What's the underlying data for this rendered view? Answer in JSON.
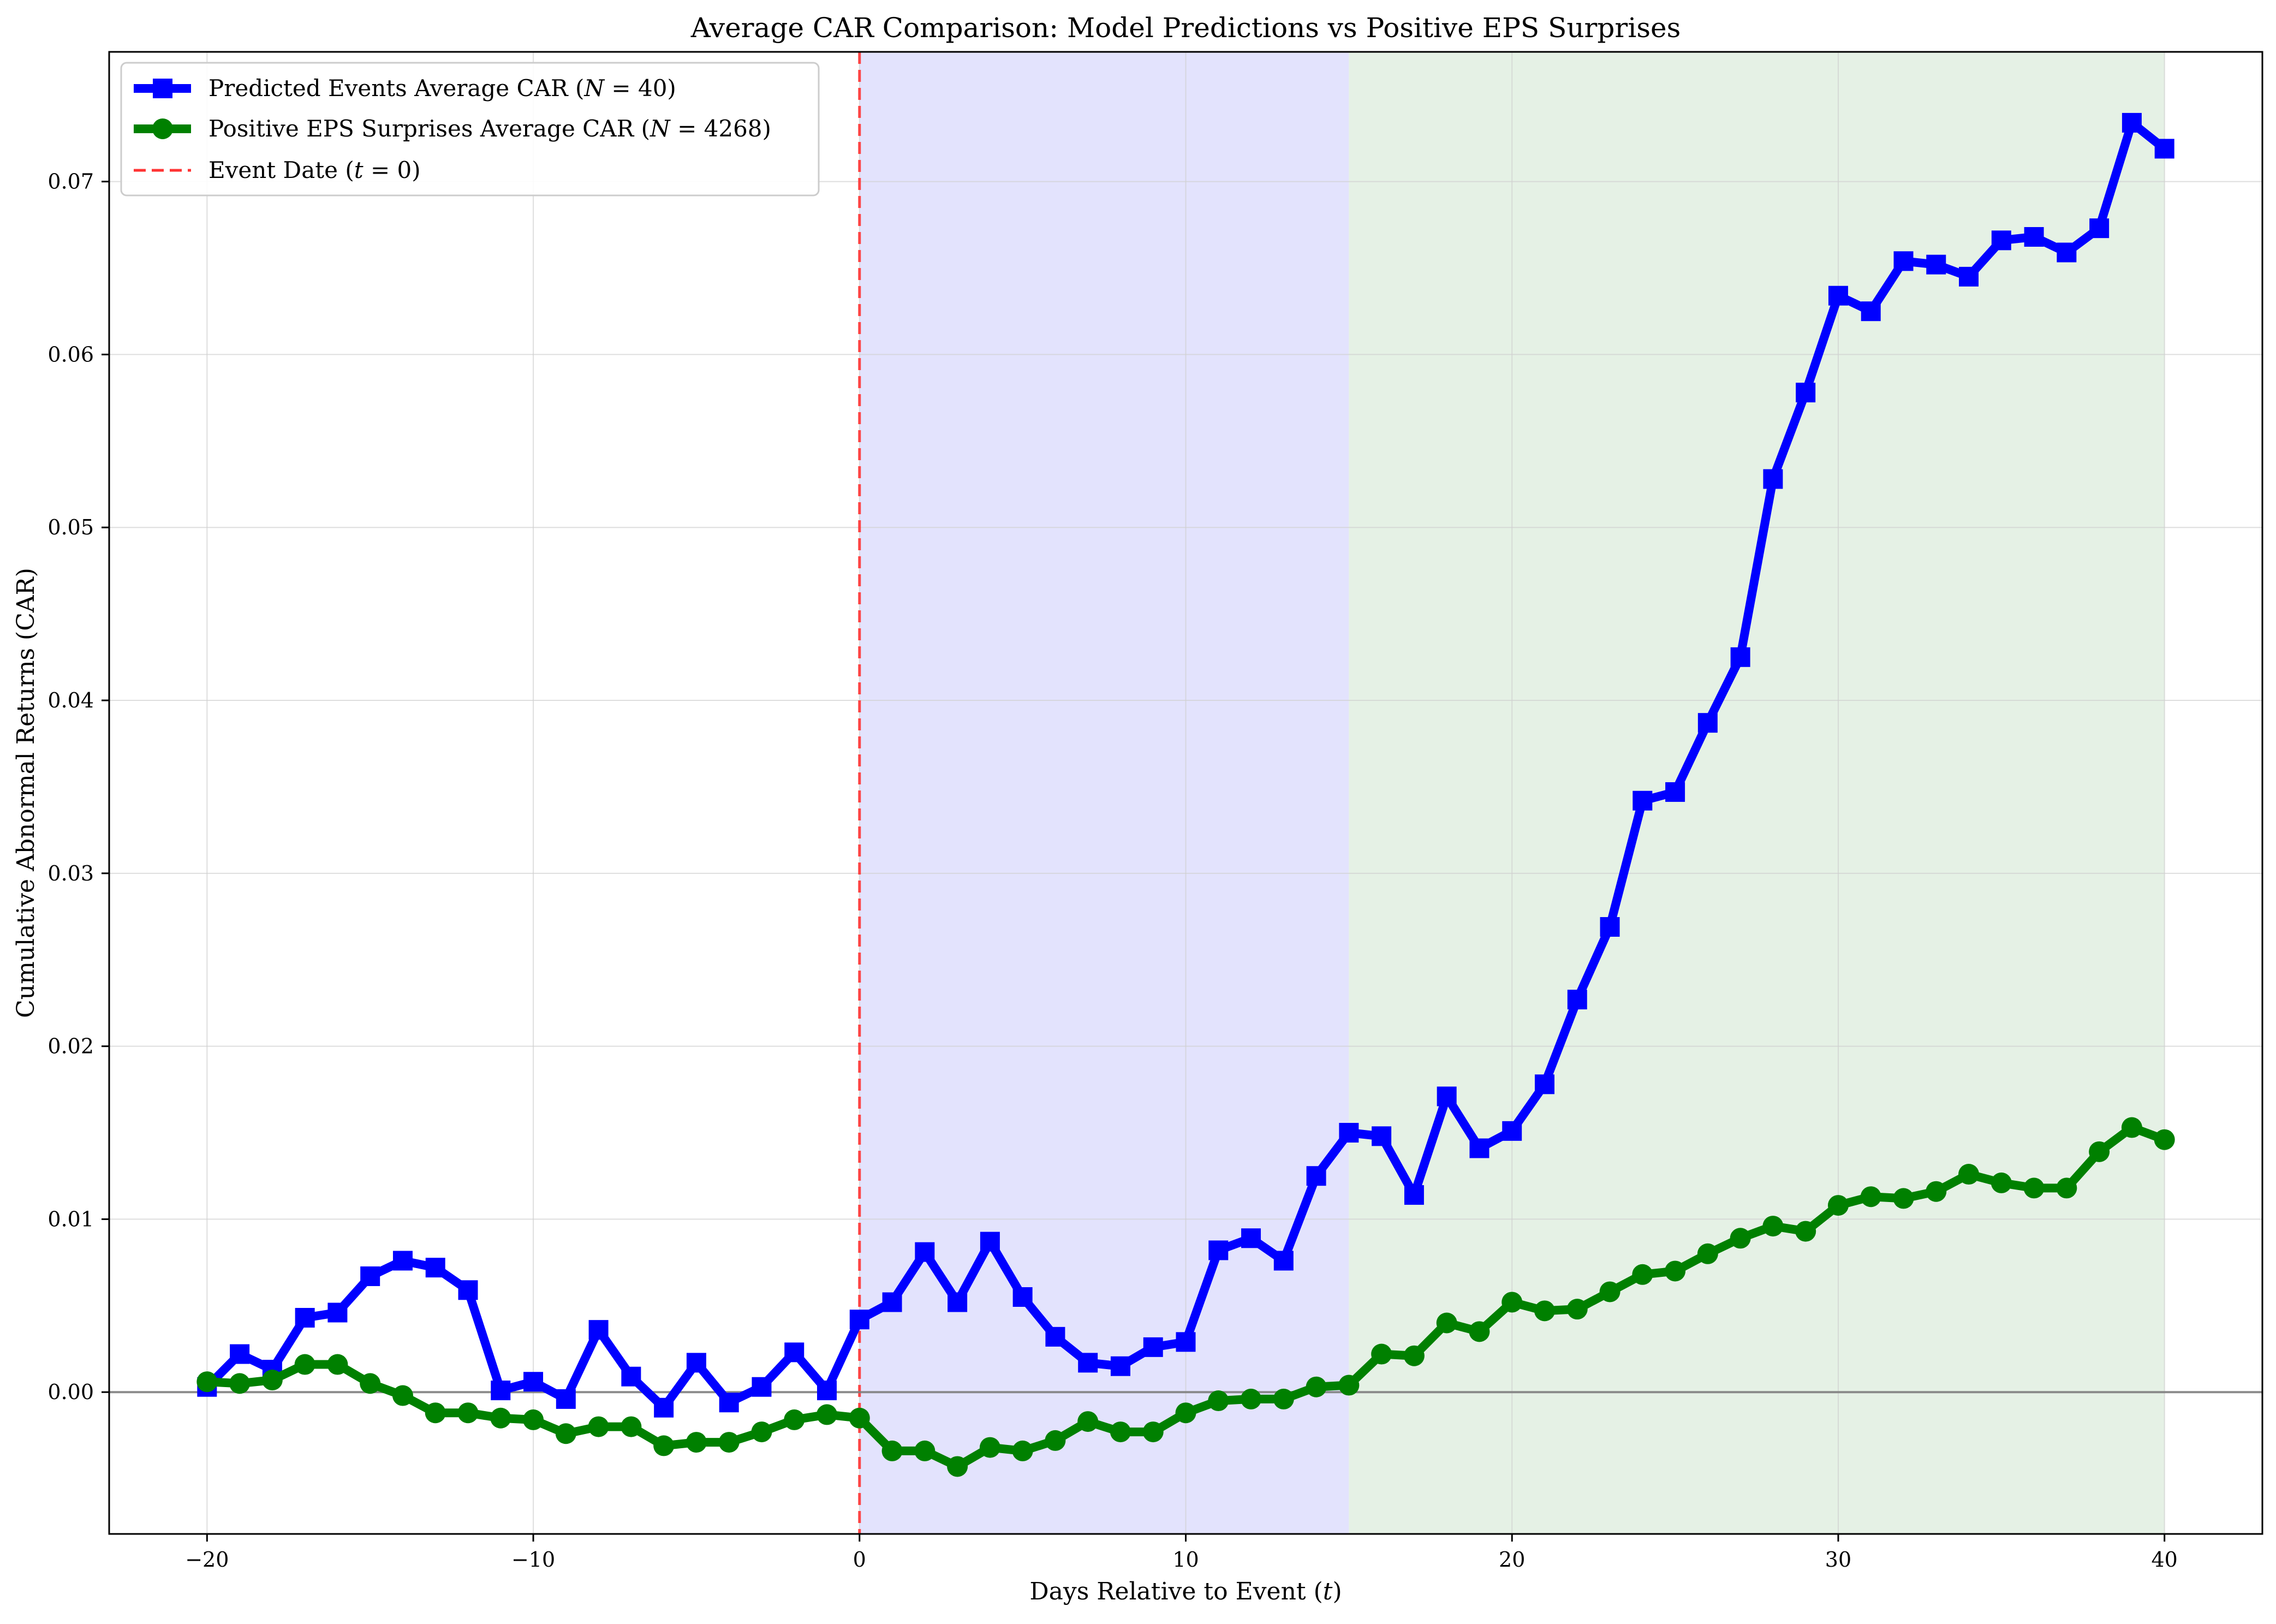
{
  "chart_data": {
    "type": "line",
    "title": "Average CAR Comparison: Model Predictions vs Positive EPS Surprises",
    "xlabel": "Days Relative to Event (t)",
    "ylabel": "Cumulative Abnormal Returns (CAR)",
    "xlim": [
      -23,
      43
    ],
    "ylim": [
      -0.0082,
      0.0775
    ],
    "xticks": [
      -20,
      -10,
      0,
      10,
      20,
      30,
      40
    ],
    "xtick_labels": [
      "−20",
      "−10",
      "0",
      "10",
      "20",
      "30",
      "40"
    ],
    "yticks": [
      0.0,
      0.01,
      0.02,
      0.03,
      0.04,
      0.05,
      0.06,
      0.07
    ],
    "ytick_labels": [
      "0.00",
      "0.01",
      "0.02",
      "0.03",
      "0.04",
      "0.05",
      "0.06",
      "0.07"
    ],
    "grid": true,
    "legend_position": "top-left",
    "regions": [
      {
        "x_start": 0,
        "x_end": 15,
        "color": "#e3e3fd"
      },
      {
        "x_start": 15,
        "x_end": 40,
        "color": "#e5f1e5"
      }
    ],
    "reference_lines": [
      {
        "orientation": "vertical",
        "x": 0,
        "color": "#ff3333",
        "style": "dashed",
        "name": "Event Date (t = 0)"
      },
      {
        "orientation": "horizontal",
        "y": 0,
        "color": "#808080",
        "style": "solid"
      }
    ],
    "x": [
      -20,
      -19,
      -18,
      -17,
      -16,
      -15,
      -14,
      -13,
      -12,
      -11,
      -10,
      -9,
      -8,
      -7,
      -6,
      -5,
      -4,
      -3,
      -2,
      -1,
      0,
      1,
      2,
      3,
      4,
      5,
      6,
      7,
      8,
      9,
      10,
      11,
      12,
      13,
      14,
      15,
      16,
      17,
      18,
      19,
      20,
      21,
      22,
      23,
      24,
      25,
      26,
      27,
      28,
      29,
      30,
      31,
      32,
      33,
      34,
      35,
      36,
      37,
      38,
      39,
      40
    ],
    "series": [
      {
        "name": "Predicted Events Average CAR (N = 40)",
        "color": "#0000ff",
        "marker": "square",
        "values": [
          0.0003,
          0.0022,
          0.0013,
          0.0043,
          0.0046,
          0.0067,
          0.0076,
          0.0072,
          0.0059,
          0.0001,
          0.0006,
          -0.0004,
          0.0036,
          0.0009,
          -0.0009,
          0.0017,
          -0.0006,
          0.0003,
          0.0023,
          0.0001,
          0.0042,
          0.0052,
          0.0081,
          0.0052,
          0.0087,
          0.0055,
          0.0032,
          0.0017,
          0.0015,
          0.0026,
          0.0029,
          0.0082,
          0.0089,
          0.0076,
          0.0125,
          0.015,
          0.0148,
          0.0114,
          0.0171,
          0.0141,
          0.0151,
          0.0178,
          0.0227,
          0.0269,
          0.0342,
          0.0347,
          0.0387,
          0.0425,
          0.0528,
          0.0578,
          0.0634,
          0.0625,
          0.0654,
          0.0652,
          0.0645,
          0.0666,
          0.0668,
          0.0659,
          0.0673,
          0.0734,
          0.0719
        ]
      },
      {
        "name": "Positive EPS Surprises Average CAR (N = 4268)",
        "color": "#008000",
        "marker": "circle",
        "values": [
          0.0006,
          0.0005,
          0.0007,
          0.0016,
          0.0016,
          0.0005,
          -0.0002,
          -0.0012,
          -0.0012,
          -0.0015,
          -0.0016,
          -0.0024,
          -0.002,
          -0.002,
          -0.0031,
          -0.0029,
          -0.0029,
          -0.0023,
          -0.0016,
          -0.0013,
          -0.0015,
          -0.0034,
          -0.0034,
          -0.0043,
          -0.0032,
          -0.0034,
          -0.0028,
          -0.0017,
          -0.0023,
          -0.0023,
          -0.0012,
          -0.0005,
          -0.0004,
          -0.0004,
          0.0003,
          0.0004,
          0.0022,
          0.0021,
          0.004,
          0.0035,
          0.0052,
          0.0047,
          0.0048,
          0.0058,
          0.0068,
          0.007,
          0.008,
          0.0089,
          0.0096,
          0.0093,
          0.0108,
          0.0113,
          0.0112,
          0.0116,
          0.0126,
          0.0121,
          0.0118,
          0.0118,
          0.0139,
          0.0153,
          0.0146
        ]
      }
    ]
  }
}
